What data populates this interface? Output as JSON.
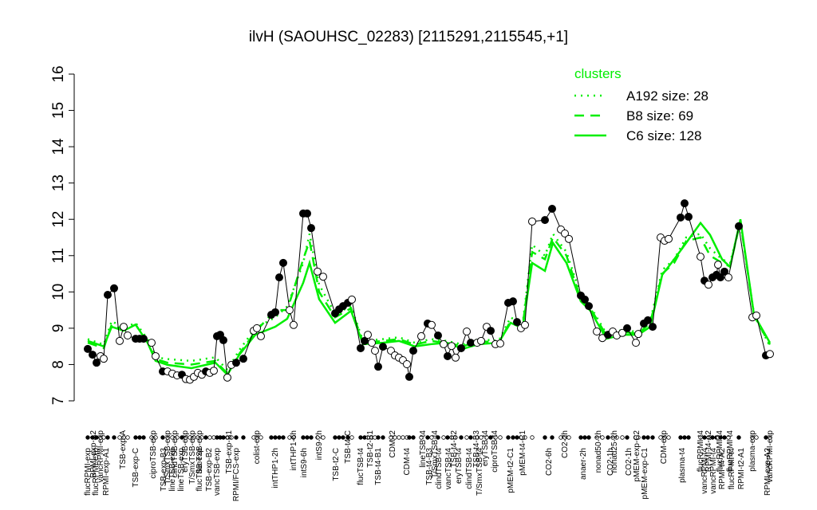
{
  "chart_data": {
    "type": "line",
    "title": "ilvH (SAOUHSC_02283) [2115291,2115545,+1]",
    "ylim": [
      7,
      16
    ],
    "yticks": [
      7,
      8,
      9,
      10,
      11,
      12,
      13,
      14,
      15,
      16
    ],
    "xlim": [
      0,
      875
    ],
    "legend": {
      "title": "clusters",
      "position": "top-right"
    },
    "points": {
      "color": "#000000",
      "x": [
        10,
        16,
        21,
        26,
        30,
        35,
        43,
        50,
        55,
        60,
        70,
        75,
        80,
        90,
        95,
        104,
        110,
        116,
        122,
        128,
        133,
        138,
        143,
        148,
        153,
        158,
        163,
        168,
        172,
        176,
        180,
        185,
        190,
        196,
        205,
        218,
        222,
        227,
        240,
        245,
        250,
        255,
        263,
        268,
        280,
        285,
        290,
        298,
        305,
        320,
        325,
        330,
        336,
        341,
        352,
        357,
        361,
        366,
        370,
        374,
        380,
        390,
        395,
        400,
        405,
        410,
        413,
        418,
        428,
        436,
        441,
        449,
        456,
        461,
        466,
        471,
        478,
        485,
        490,
        498,
        503,
        510,
        515,
        521,
        527,
        537,
        543,
        548,
        553,
        558,
        567,
        583,
        592,
        603,
        608,
        613,
        628,
        633,
        638,
        648,
        655,
        662,
        668,
        673,
        680,
        686,
        697,
        700,
        707,
        712,
        718,
        728,
        733,
        738,
        753,
        758,
        763,
        778,
        783,
        788,
        793,
        798,
        800,
        803,
        808,
        813,
        826,
        843,
        848,
        860,
        865
      ],
      "values": [
        8.43,
        8.27,
        8.05,
        8.23,
        8.16,
        9.92,
        10.1,
        8.65,
        9.04,
        8.8,
        8.71,
        8.71,
        8.71,
        8.6,
        8.23,
        7.81,
        7.81,
        7.75,
        7.7,
        7.72,
        7.6,
        7.58,
        7.66,
        7.77,
        7.72,
        7.81,
        7.77,
        7.83,
        8.78,
        8.82,
        8.67,
        7.64,
        7.99,
        8.05,
        8.16,
        8.93,
        9.0,
        8.78,
        9.37,
        9.44,
        10.4,
        10.8,
        9.5,
        9.09,
        12.16,
        12.16,
        11.76,
        10.56,
        10.42,
        9.41,
        9.52,
        9.61,
        9.7,
        9.79,
        8.45,
        8.65,
        8.82,
        8.6,
        8.38,
        7.94,
        8.49,
        8.38,
        8.25,
        8.19,
        8.12,
        8.01,
        7.66,
        8.38,
        8.78,
        9.13,
        9.09,
        8.8,
        8.56,
        8.23,
        8.51,
        8.19,
        8.45,
        8.91,
        8.6,
        8.6,
        8.65,
        9.04,
        8.93,
        8.56,
        8.58,
        9.7,
        9.74,
        9.17,
        9.0,
        9.09,
        11.94,
        11.98,
        12.29,
        11.72,
        11.61,
        11.46,
        9.9,
        9.79,
        9.61,
        8.91,
        8.73,
        8.82,
        8.91,
        8.8,
        8.87,
        9.0,
        8.6,
        8.84,
        9.13,
        9.22,
        9.04,
        11.5,
        11.41,
        11.46,
        12.05,
        12.44,
        12.07,
        10.97,
        10.31,
        10.2,
        10.4,
        10.47,
        10.75,
        10.4,
        10.56,
        10.4,
        11.81,
        9.3,
        9.35,
        8.25,
        8.29
      ],
      "fills": [
        "black",
        "black",
        "black",
        "white",
        "white",
        "black",
        "black",
        "white",
        "white",
        "white",
        "black",
        "black",
        "black",
        "white",
        "white",
        "black",
        "white",
        "white",
        "white",
        "black",
        "white",
        "white",
        "white",
        "white",
        "white",
        "black",
        "white",
        "white",
        "black",
        "black",
        "black",
        "white",
        "white",
        "black",
        "black",
        "white",
        "white",
        "white",
        "black",
        "black",
        "black",
        "black",
        "white",
        "white",
        "black",
        "black",
        "black",
        "white",
        "white",
        "black",
        "black",
        "black",
        "black",
        "white",
        "black",
        "black",
        "white",
        "white",
        "white",
        "black",
        "black",
        "white",
        "white",
        "white",
        "white",
        "white",
        "black",
        "black",
        "white",
        "black",
        "white",
        "black",
        "white",
        "black",
        "white",
        "white",
        "black",
        "white",
        "black",
        "white",
        "white",
        "white",
        "black",
        "white",
        "white",
        "black",
        "black",
        "black",
        "white",
        "white",
        "white",
        "black",
        "black",
        "white",
        "white",
        "white",
        "black",
        "black",
        "black",
        "white",
        "white",
        "black",
        "white",
        "white",
        "white",
        "black",
        "white",
        "white",
        "black",
        "black",
        "black",
        "white",
        "white",
        "white",
        "black",
        "black",
        "black",
        "white",
        "black",
        "white",
        "black",
        "black",
        "white",
        "black",
        "black",
        "white",
        "black",
        "white",
        "white",
        "black",
        "white"
      ]
    },
    "series": [
      {
        "name": "A192 size: 28",
        "color": "#00ee00",
        "dash": "dotted",
        "x": [
          10,
          30,
          40,
          55,
          70,
          85,
          95,
          110,
          140,
          170,
          185,
          200,
          220,
          245,
          260,
          280,
          288,
          300,
          320,
          340,
          355,
          380,
          400,
          420,
          440,
          460,
          480,
          500,
          525,
          540,
          555,
          567,
          583,
          593,
          610,
          628,
          640,
          660,
          680,
          700,
          715,
          730,
          745,
          760,
          778,
          790,
          805,
          815,
          828,
          845,
          865
        ],
        "values": [
          8.7,
          8.55,
          9.2,
          9.0,
          9.15,
          8.7,
          8.2,
          8.15,
          8.1,
          8.2,
          7.85,
          8.4,
          9.0,
          9.3,
          9.6,
          10.8,
          11.6,
          10.2,
          9.4,
          9.6,
          8.65,
          8.7,
          8.75,
          8.6,
          8.7,
          8.65,
          8.55,
          8.7,
          8.65,
          9.3,
          9.1,
          11.3,
          11.0,
          11.6,
          11.1,
          9.9,
          9.6,
          8.85,
          8.95,
          8.9,
          9.2,
          10.6,
          10.9,
          11.5,
          11.6,
          11.2,
          10.9,
          10.8,
          11.9,
          9.4,
          8.5
        ]
      },
      {
        "name": "B8 size: 69",
        "color": "#00ee00",
        "dash": "dashed",
        "x": [
          10,
          30,
          40,
          55,
          70,
          85,
          95,
          110,
          140,
          170,
          185,
          200,
          220,
          245,
          260,
          280,
          288,
          300,
          320,
          340,
          355,
          380,
          400,
          420,
          440,
          460,
          480,
          500,
          525,
          540,
          555,
          567,
          583,
          593,
          610,
          628,
          640,
          660,
          680,
          700,
          715,
          730,
          745,
          760,
          778,
          790,
          805,
          815,
          828,
          845,
          865
        ],
        "values": [
          8.6,
          8.45,
          9.1,
          8.95,
          9.1,
          8.6,
          8.15,
          8.05,
          8.0,
          8.1,
          7.75,
          8.3,
          8.9,
          9.5,
          9.5,
          10.9,
          11.4,
          10.0,
          9.3,
          9.55,
          8.6,
          8.65,
          8.7,
          8.55,
          8.65,
          8.6,
          8.5,
          8.65,
          8.6,
          9.2,
          9.05,
          11.1,
          10.9,
          11.5,
          11.0,
          9.8,
          9.55,
          8.8,
          8.9,
          8.85,
          9.15,
          10.5,
          10.8,
          11.4,
          11.5,
          11.0,
          10.8,
          10.7,
          11.95,
          9.35,
          8.55
        ]
      },
      {
        "name": "C6 size: 128",
        "color": "#00ee00",
        "dash": "solid",
        "x": [
          10,
          30,
          40,
          55,
          70,
          85,
          95,
          110,
          140,
          170,
          185,
          200,
          220,
          245,
          260,
          280,
          288,
          300,
          320,
          340,
          355,
          380,
          400,
          420,
          440,
          460,
          480,
          500,
          525,
          540,
          555,
          567,
          583,
          593,
          610,
          628,
          640,
          660,
          680,
          700,
          715,
          730,
          745,
          760,
          778,
          790,
          805,
          815,
          828,
          845,
          865
        ],
        "values": [
          8.65,
          8.5,
          9.04,
          8.93,
          9.1,
          8.6,
          8.1,
          7.99,
          7.9,
          8.05,
          7.72,
          8.27,
          8.82,
          9.04,
          9.26,
          10.25,
          10.8,
          9.8,
          9.15,
          9.48,
          8.56,
          8.6,
          8.65,
          8.5,
          8.56,
          8.6,
          8.43,
          8.56,
          8.6,
          9.15,
          9.0,
          10.8,
          10.58,
          11.35,
          10.8,
          9.74,
          9.48,
          8.71,
          8.82,
          8.82,
          9.04,
          10.47,
          10.9,
          11.35,
          11.9,
          11.57,
          10.9,
          10.69,
          12.0,
          9.37,
          8.6
        ]
      }
    ],
    "top_labels": [
      {
        "text": "RPMI-exp-A2",
        "x": 17
      },
      {
        "text": "vancRPMI-exp",
        "x": 26
      },
      {
        "text": "TSB-exp-A",
        "x": 54
      },
      {
        "text": "ciproTSB-exp",
        "x": 92
      },
      {
        "text": "T/SmxTSB-exp",
        "x": 110
      },
      {
        "text": "clindTSB-exp",
        "x": 119
      },
      {
        "text": "eryTSB-exp",
        "x": 132
      },
      {
        "text": "T/SmxTSB-exp",
        "x": 141
      },
      {
        "text": "flucTSB-exp",
        "x": 150
      },
      {
        "text": "TSB-exp-B1",
        "x": 187
      },
      {
        "text": "colist-exp",
        "x": 222
      },
      {
        "text": "intTHP1-6h",
        "x": 268
      },
      {
        "text": "intS9-2h",
        "x": 300
      },
      {
        "text": "TSB-t4-C",
        "x": 336
      },
      {
        "text": "TSB-t2-B1",
        "x": 364
      },
      {
        "text": "CDM-t2",
        "x": 392
      },
      {
        "text": "lineTSB-t4",
        "x": 430
      },
      {
        "text": "T/SmxTSB-t4",
        "x": 445
      },
      {
        "text": "TSB-t4-B2",
        "x": 469
      },
      {
        "text": "TSB-t4-B3",
        "x": 497
      },
      {
        "text": "eryTSB-t4",
        "x": 508
      },
      {
        "text": "ciproTSB-t4",
        "x": 520
      },
      {
        "text": "pMEM-t4-C1",
        "x": 555
      },
      {
        "text": "CO2-2h",
        "x": 608
      },
      {
        "text": "nonad50-1h",
        "x": 650
      },
      {
        "text": "nonad25-1h",
        "x": 670
      },
      {
        "text": "pMEM-exp-C2",
        "x": 698
      },
      {
        "text": "CDM-exp",
        "x": 732
      },
      {
        "text": "flucRPMI-t4",
        "x": 778
      },
      {
        "text": "RPMI-t4-A2",
        "x": 788
      },
      {
        "text": "flucRPMI-t4",
        "x": 802
      },
      {
        "text": "flucRPMI-t4",
        "x": 815
      },
      {
        "text": "plasma-exp",
        "x": 843
      },
      {
        "text": "vancRPMI-exp",
        "x": 865
      }
    ],
    "bottom_labels": [
      {
        "text": "flucRPMI-exp",
        "x": 10
      },
      {
        "text": "flucRPMI-exp",
        "x": 20
      },
      {
        "text": "RPMI-exp-A1",
        "x": 33
      },
      {
        "text": "TSB-exp-C",
        "x": 70
      },
      {
        "text": "TSB-exp-B3",
        "x": 105
      },
      {
        "text": "lineTSB-exp",
        "x": 116
      },
      {
        "text": "lineTSB-exp",
        "x": 127
      },
      {
        "text": "TSB-exp-B2",
        "x": 162
      },
      {
        "text": "flucTSB-exp",
        "x": 150
      },
      {
        "text": "vancTSB-exp",
        "x": 172
      },
      {
        "text": "RPMI/FCS-exp",
        "x": 196
      },
      {
        "text": "intTHP1-2h",
        "x": 245
      },
      {
        "text": "intS9-6h",
        "x": 281
      },
      {
        "text": "TSB-t2-C",
        "x": 321
      },
      {
        "text": "flucTSB-t4",
        "x": 352
      },
      {
        "text": "TSB-t4-B1",
        "x": 374
      },
      {
        "text": "CDM-t4",
        "x": 410
      },
      {
        "text": "TSB-t4-B3",
        "x": 438
      },
      {
        "text": "clindTSB-t4",
        "x": 450
      },
      {
        "text": "vancTSB-t4",
        "x": 462
      },
      {
        "text": "eryTSB-t4",
        "x": 475
      },
      {
        "text": "clindTSB-t4",
        "x": 488
      },
      {
        "text": "T/SmxTSB-t4",
        "x": 501
      },
      {
        "text": "pMEM-t2-C1",
        "x": 540
      },
      {
        "text": "CO2-6h",
        "x": 588
      },
      {
        "text": "anaer-2h",
        "x": 631
      },
      {
        "text": "CO2-1h",
        "x": 665
      },
      {
        "text": "CO2-1h",
        "x": 688
      },
      {
        "text": "pMEM-exp-C1",
        "x": 708
      },
      {
        "text": "plasma-t4",
        "x": 755
      },
      {
        "text": "vancRPMI-t4",
        "x": 783
      },
      {
        "text": "vancRPMI-t4",
        "x": 794
      },
      {
        "text": "RPMI-t4-A2",
        "x": 805
      },
      {
        "text": "flucRPMI-t4",
        "x": 817
      },
      {
        "text": "RPMI-t2-A1",
        "x": 829
      },
      {
        "text": "RPMI-exp-A2",
        "x": 862
      }
    ]
  }
}
